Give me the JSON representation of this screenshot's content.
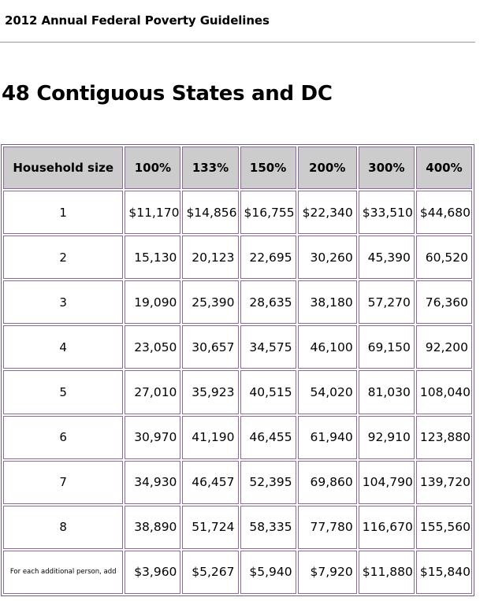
{
  "page": {
    "title": "2012 Annual Federal Poverty Guidelines",
    "heading": "48 Contiguous States and DC"
  },
  "table": {
    "headers": [
      "Household size",
      "100%",
      "133%",
      "150%",
      "200%",
      "300%",
      "400%"
    ],
    "rows": [
      {
        "size": "1",
        "values": [
          "$11,170",
          "$14,856",
          "$16,755",
          "$22,340",
          "$33,510",
          "$44,680"
        ]
      },
      {
        "size": "2",
        "values": [
          "15,130",
          "20,123",
          "22,695",
          "30,260",
          "45,390",
          "60,520"
        ]
      },
      {
        "size": "3",
        "values": [
          "19,090",
          "25,390",
          "28,635",
          "38,180",
          "57,270",
          "76,360"
        ]
      },
      {
        "size": "4",
        "values": [
          "23,050",
          "30,657",
          "34,575",
          "46,100",
          "69,150",
          "92,200"
        ]
      },
      {
        "size": "5",
        "values": [
          "27,010",
          "35,923",
          "40,515",
          "54,020",
          "81,030",
          "108,040"
        ]
      },
      {
        "size": "6",
        "values": [
          "30,970",
          "41,190",
          "46,455",
          "61,940",
          "92,910",
          "123,880"
        ]
      },
      {
        "size": "7",
        "values": [
          "34,930",
          "46,457",
          "52,395",
          "69,860",
          "104,790",
          "139,720"
        ]
      },
      {
        "size": "8",
        "values": [
          "38,890",
          "51,724",
          "58,335",
          "77,780",
          "116,670",
          "155,560"
        ]
      },
      {
        "size": "For each additional person, add",
        "values": [
          "$3,960",
          "$5,267",
          "$5,940",
          "$7,920",
          "$11,880",
          "$15,840"
        ]
      }
    ]
  }
}
